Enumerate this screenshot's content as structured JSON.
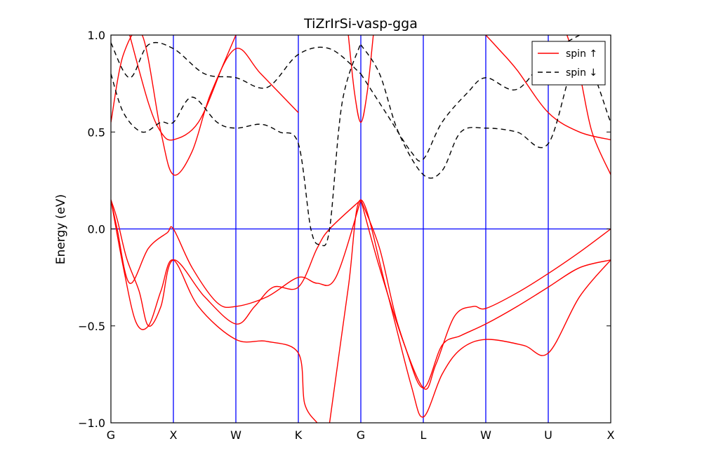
{
  "chart_data": {
    "type": "line",
    "title": "TiZrIrSi-vasp-gga",
    "xlabel": "",
    "ylabel": "Energy (eV)",
    "ylim": [
      -1.0,
      1.0
    ],
    "yticks": [
      "−1.0",
      "−0.5",
      "0.0",
      "0.5",
      "1.0"
    ],
    "ytick_values": [
      -1.0,
      -0.5,
      0.0,
      0.5,
      1.0
    ],
    "kpath": [
      "G",
      "X",
      "W",
      "K",
      "G",
      "L",
      "W",
      "U",
      "X"
    ],
    "grid": false,
    "fermi_level": 0.0,
    "legend": {
      "position": "top-right",
      "entries": [
        {
          "label": "spin ↑",
          "color": "#ff0000",
          "dash": "solid"
        },
        {
          "label": "spin ↓",
          "color": "#000000",
          "dash": "dashed"
        }
      ]
    },
    "colors": {
      "spin_up": "#ff0000",
      "spin_down": "#000000",
      "kpath_lines": "#0000ff",
      "fermi_line": "#0000ff"
    },
    "series": [
      {
        "name": "spin ↑",
        "x": [
          0,
          0.1,
          0.25,
          0.45,
          0.6,
          0.8,
          1.0,
          1.5,
          2.0,
          2.3,
          2.6,
          3.0,
          3.3,
          3.5,
          4.0
        ],
        "values": [
          0.15,
          0.05,
          -0.15,
          -0.32,
          -0.5,
          -0.4,
          -0.16,
          -0.35,
          -0.49,
          -0.4,
          -0.3,
          -0.3,
          -0.1,
          0.0,
          0.15
        ]
      },
      {
        "name": "spin ↑",
        "x": [
          0,
          0.1,
          0.3,
          0.6,
          0.9,
          1.0,
          1.3,
          1.7,
          2.0,
          2.5,
          3.0,
          3.3,
          3.6,
          4.0
        ],
        "values": [
          0.15,
          0.0,
          -0.28,
          -0.1,
          -0.02,
          0.0,
          -0.2,
          -0.38,
          -0.4,
          -0.35,
          -0.25,
          -0.28,
          -0.25,
          0.15
        ]
      },
      {
        "name": "spin ↑",
        "x": [
          0,
          0.2,
          0.4,
          0.6,
          0.8,
          1.0,
          1.4,
          2.0,
          2.5,
          3.0,
          3.1,
          3.3
        ],
        "values": [
          0.15,
          -0.2,
          -0.48,
          -0.5,
          -0.32,
          -0.16,
          -0.4,
          -0.57,
          -0.58,
          -0.64,
          -0.9,
          -1.0
        ]
      },
      {
        "name": "spin ↑",
        "x": [
          4.0,
          4.3,
          4.6,
          5.0,
          5.2,
          5.5,
          5.8,
          6.0,
          6.5,
          7.0,
          7.5,
          8.0
        ],
        "values": [
          0.15,
          -0.1,
          -0.5,
          -0.82,
          -0.7,
          -0.45,
          -0.4,
          -0.41,
          -0.33,
          -0.23,
          -0.12,
          0.0
        ]
      },
      {
        "name": "spin ↑",
        "x": [
          4.0,
          4.3,
          4.7,
          5.0,
          5.3,
          5.6,
          6.0,
          6.5,
          7.0,
          7.5,
          8.0
        ],
        "values": [
          0.15,
          -0.2,
          -0.6,
          -0.82,
          -0.6,
          -0.55,
          -0.49,
          -0.4,
          -0.3,
          -0.2,
          -0.16
        ]
      },
      {
        "name": "spin ↑",
        "x": [
          3.5,
          3.8,
          4.0,
          4.4,
          4.8,
          5.0,
          5.3,
          5.6,
          6.0,
          6.6,
          7.0,
          7.5,
          8.0
        ],
        "values": [
          -1.0,
          -0.3,
          0.15,
          -0.3,
          -0.8,
          -0.97,
          -0.75,
          -0.62,
          -0.57,
          -0.6,
          -0.64,
          -0.35,
          -0.16
        ]
      },
      {
        "name": "spin ↑",
        "x": [
          0,
          0.2,
          0.5,
          0.8,
          1.0,
          1.3,
          1.6,
          2.0,
          2.4,
          3.0
        ],
        "values": [
          0.55,
          0.9,
          1.0,
          0.5,
          0.28,
          0.4,
          0.7,
          0.93,
          0.8,
          0.6
        ]
      },
      {
        "name": "spin ↑",
        "x": [
          0.3,
          0.6,
          0.8,
          1.0,
          1.4,
          1.8,
          2.0
        ],
        "values": [
          1.0,
          0.65,
          0.5,
          0.46,
          0.55,
          0.85,
          1.0
        ]
      },
      {
        "name": "spin ↑",
        "x": [
          3.8,
          3.9,
          4.0,
          4.1,
          4.2
        ],
        "values": [
          1.0,
          0.7,
          0.55,
          0.7,
          1.0
        ]
      },
      {
        "name": "spin ↑",
        "x": [
          6.0,
          6.2,
          6.5,
          7.0,
          7.5,
          8.0
        ],
        "values": [
          1.0,
          0.93,
          0.82,
          0.6,
          0.5,
          0.46
        ]
      },
      {
        "name": "spin ↑",
        "x": [
          7.3,
          7.5,
          7.7,
          8.0
        ],
        "values": [
          1.0,
          0.8,
          0.5,
          0.28
        ]
      },
      {
        "name": "spin ↓",
        "x": [
          0,
          0.2,
          0.5,
          0.8,
          1.0,
          1.3,
          1.7,
          2.0,
          2.4,
          2.7,
          3.0,
          3.2,
          3.35,
          3.5,
          3.7,
          4.0
        ],
        "values": [
          0.8,
          0.6,
          0.5,
          0.55,
          0.55,
          0.68,
          0.55,
          0.52,
          0.54,
          0.5,
          0.44,
          0.0,
          -0.08,
          0.0,
          0.65,
          0.96
        ]
      },
      {
        "name": "spin ↓",
        "x": [
          0,
          0.3,
          0.6,
          1.0,
          1.5,
          2.0,
          2.5,
          3.0,
          3.5,
          4.0
        ],
        "values": [
          0.96,
          0.78,
          0.95,
          0.93,
          0.8,
          0.78,
          0.73,
          0.9,
          0.93,
          0.8
        ]
      },
      {
        "name": "spin ↓",
        "x": [
          4.0,
          4.3,
          4.6,
          5.0,
          5.3,
          5.6,
          6.0,
          6.5,
          7.0,
          7.5,
          8.0
        ],
        "values": [
          0.95,
          0.8,
          0.5,
          0.28,
          0.3,
          0.5,
          0.52,
          0.5,
          0.44,
          0.9,
          0.55
        ]
      },
      {
        "name": "spin ↓",
        "x": [
          4.0,
          4.4,
          4.8,
          5.0,
          5.3,
          5.7,
          6.0,
          6.5,
          7.0,
          7.5
        ],
        "values": [
          0.8,
          0.6,
          0.4,
          0.36,
          0.55,
          0.7,
          0.78,
          0.72,
          0.9,
          1.0
        ]
      }
    ]
  }
}
